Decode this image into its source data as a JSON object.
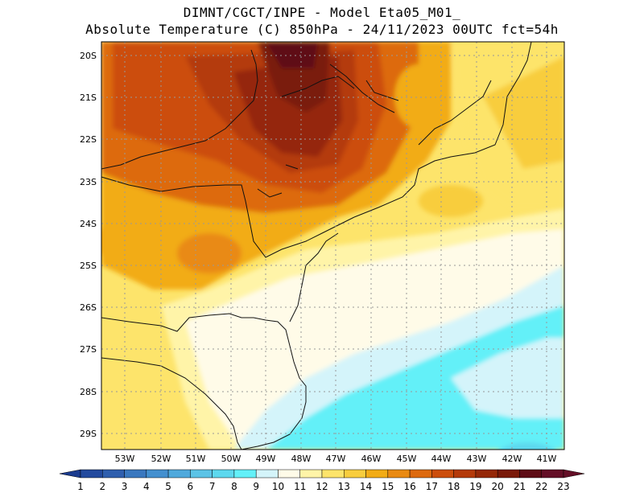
{
  "header": {
    "line1": "DIMNT/CGCT/INPE -  Model Eta05_M01_",
    "line2": "Absolute Temperature (C) 850hPa -  24/11/2023 00UTC fct=54h"
  },
  "map": {
    "lat_labels": [
      "20S",
      "21S",
      "22S",
      "23S",
      "24S",
      "25S",
      "26S",
      "27S",
      "28S",
      "29S"
    ],
    "lon_labels": [
      "53W",
      "52W",
      "51W",
      "50W",
      "49W",
      "48W",
      "47W",
      "46W",
      "45W",
      "44W",
      "43W",
      "42W",
      "41W"
    ]
  },
  "colorbar": {
    "values": [
      "1",
      "2",
      "3",
      "4",
      "5",
      "6",
      "7",
      "8",
      "9",
      "10",
      "11",
      "12",
      "13",
      "14",
      "15",
      "16",
      "17",
      "18",
      "19",
      "20",
      "21",
      "22",
      "23"
    ],
    "colors": [
      "#1a3b8f",
      "#234a9e",
      "#2f5fae",
      "#3a78bf",
      "#4490cf",
      "#4fa9dc",
      "#5cc3e6",
      "#5dd8ee",
      "#63f0f8",
      "#d4f4fa",
      "#fffbe8",
      "#fff4a8",
      "#fde46b",
      "#f8cd3e",
      "#f2ac16",
      "#e98a12",
      "#dd6a0f",
      "#cc4e0c",
      "#b43a0a",
      "#952808",
      "#7a1a0a",
      "#5e0c16",
      "#640f27"
    ]
  },
  "colors": {
    "cold_sea": "#63f0f8",
    "very_hot": "#5e0c16"
  }
}
